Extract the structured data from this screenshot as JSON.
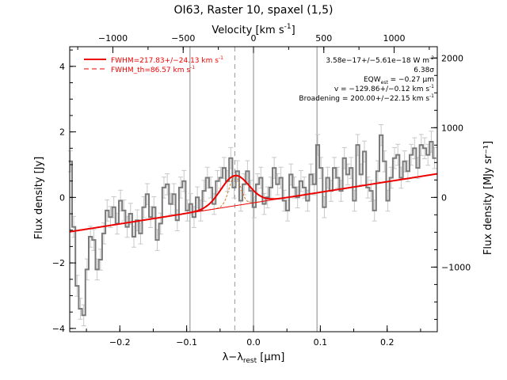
{
  "chart_data": {
    "type": "line",
    "title": "OI63, Raster 10, spaxel (1,5)",
    "xlabel_html": "λ−λrest [μm]",
    "xlabel": {
      "main": "λ−λ",
      "sub": "rest",
      "unit": " [μm]"
    },
    "ylabel": "Flux density [Jy]",
    "y2label": "Flux density [MJy sr⁻¹]",
    "top_axis_label": {
      "main": "Velocity [km s",
      "sup": "-1",
      "end": "]"
    },
    "xlim": [
      -0.275,
      0.275
    ],
    "ylim": [
      -4.1,
      4.6
    ],
    "y2lim": [
      -1927,
      2162
    ],
    "vlim": [
      -1307,
      1307
    ],
    "x_ticks": [
      -0.2,
      -0.1,
      0.0,
      0.1,
      0.2
    ],
    "x_tick_labels": [
      "−0.2",
      "−0.1",
      "0.0",
      "0.1",
      "0.2"
    ],
    "y_ticks": [
      -4,
      -2,
      0,
      2,
      4
    ],
    "y_tick_labels": [
      "−4",
      "−2",
      "0",
      "2",
      "4"
    ],
    "y2_ticks": [
      -1000,
      0,
      1000,
      2000
    ],
    "y2_tick_labels": [
      "−1000",
      "0",
      "1000",
      "2000"
    ],
    "v_ticks": [
      -1000,
      -500,
      0,
      500,
      1000
    ],
    "v_tick_labels": [
      "−1000",
      "−500",
      "0",
      "500",
      "1000"
    ],
    "vertical_lines": [
      -0.095,
      0.0,
      0.095
    ],
    "dashed_line": -0.028,
    "legend": [
      {
        "label": "FWHM=217.83+/−24.13 km s",
        "sup": "-1",
        "style": "solid",
        "color": "#ee0000"
      },
      {
        "label": "FWHM_th=86.57 km s",
        "sup": "-1",
        "style": "dashed",
        "color": "#ee0000"
      }
    ],
    "annotations": [
      {
        "text": "3.58e−17+/−5.61e−18 W m",
        "sup": "-2"
      },
      {
        "text": "6.38σ"
      },
      {
        "text": "EQW",
        "sub": "est",
        "tail": " = −0.27 μm"
      },
      {
        "text": "v = −129.86+/−0.12 km s",
        "sup": "-1"
      },
      {
        "text": "Broadening = 200.00+/−22.15 km s",
        "sup": "-1"
      }
    ],
    "continuum": {
      "x": [
        -0.275,
        0.275
      ],
      "y": [
        -1.05,
        0.72
      ]
    },
    "gaussian": {
      "center": -0.028,
      "sigma": 0.021,
      "amplitude": 0.92
    },
    "thermal": {
      "center": -0.028,
      "sigma": 0.0085,
      "amplitude": 0.92
    },
    "series": [
      {
        "name": "spectrum",
        "x": [
          -0.274,
          -0.269,
          -0.264,
          -0.259,
          -0.254,
          -0.249,
          -0.244,
          -0.239,
          -0.234,
          -0.229,
          -0.224,
          -0.219,
          -0.214,
          -0.209,
          -0.204,
          -0.199,
          -0.194,
          -0.189,
          -0.184,
          -0.179,
          -0.174,
          -0.169,
          -0.164,
          -0.159,
          -0.154,
          -0.149,
          -0.144,
          -0.139,
          -0.134,
          -0.129,
          -0.124,
          -0.119,
          -0.114,
          -0.109,
          -0.104,
          -0.099,
          -0.094,
          -0.089,
          -0.084,
          -0.079,
          -0.074,
          -0.069,
          -0.064,
          -0.059,
          -0.054,
          -0.049,
          -0.044,
          -0.039,
          -0.034,
          -0.029,
          -0.024,
          -0.019,
          -0.014,
          -0.009,
          -0.004,
          0.001,
          0.006,
          0.011,
          0.016,
          0.021,
          0.026,
          0.031,
          0.036,
          0.041,
          0.046,
          0.051,
          0.056,
          0.061,
          0.066,
          0.071,
          0.076,
          0.081,
          0.086,
          0.091,
          0.096,
          0.101,
          0.106,
          0.111,
          0.116,
          0.121,
          0.126,
          0.131,
          0.136,
          0.141,
          0.146,
          0.151,
          0.156,
          0.161,
          0.166,
          0.171,
          0.176,
          0.181,
          0.186,
          0.191,
          0.196,
          0.201,
          0.206,
          0.211,
          0.216,
          0.221,
          0.226,
          0.231,
          0.236,
          0.241,
          0.246,
          0.251,
          0.256,
          0.261,
          0.266,
          0.271
        ],
        "y": [
          1.1,
          -0.9,
          -2.7,
          -3.4,
          -3.6,
          -2.2,
          -1.2,
          -1.3,
          -2.2,
          -1.9,
          -1.1,
          -0.4,
          -0.6,
          -0.3,
          -0.8,
          -0.1,
          -0.4,
          -0.9,
          -0.5,
          -1.2,
          -0.7,
          -1.1,
          -0.3,
          0.1,
          -0.6,
          -0.3,
          -1.3,
          -0.8,
          0.3,
          0.4,
          -0.2,
          0.1,
          -0.7,
          0.3,
          0.5,
          -0.4,
          -0.2,
          -0.6,
          0.0,
          -0.4,
          0.2,
          0.6,
          0.3,
          -0.2,
          0.5,
          0.6,
          0.9,
          0.5,
          1.2,
          0.3,
          0.8,
          -0.1,
          0.4,
          0.8,
          0.2,
          -0.3,
          0.4,
          0.6,
          -0.2,
          0.0,
          0.3,
          0.9,
          0.4,
          0.6,
          -0.1,
          -0.4,
          0.7,
          0.3,
          0.0,
          0.5,
          0.3,
          -0.1,
          0.7,
          0.4,
          1.6,
          0.9,
          -0.3,
          0.6,
          0.2,
          0.9,
          0.6,
          0.2,
          1.2,
          0.7,
          0.9,
          -0.1,
          1.6,
          0.7,
          1.4,
          0.3,
          0.2,
          -0.4,
          0.8,
          1.9,
          1.1,
          -0.1,
          0.6,
          1.2,
          1.3,
          0.6,
          1.1,
          0.8,
          1.3,
          1.5,
          0.9,
          1.6,
          1.5,
          1.3,
          1.7,
          1.2
        ],
        "err": 0.32
      }
    ]
  }
}
